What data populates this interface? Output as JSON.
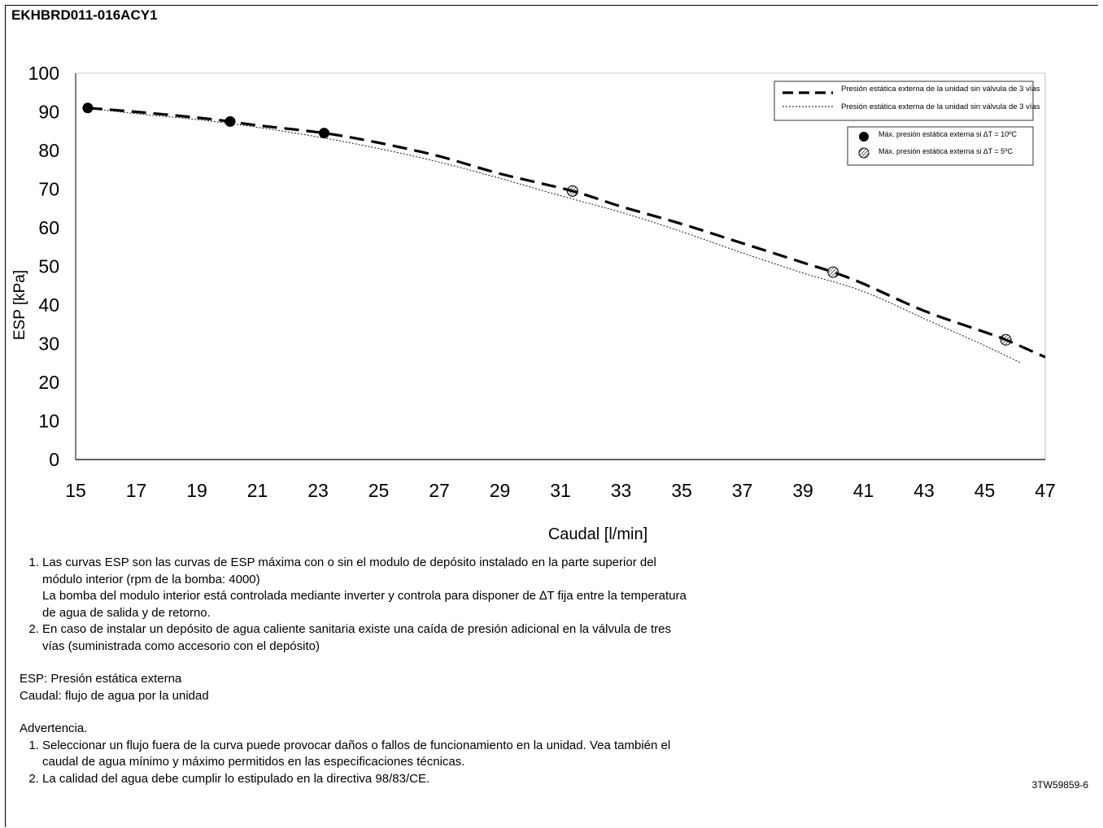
{
  "document": {
    "title": "EKHBRD011-016ACY1",
    "code": "3TW59859-6"
  },
  "chart_data": {
    "type": "line",
    "title": "",
    "xlabel": "Caudal [l/min]",
    "ylabel": "ESP [kPa]",
    "xlim": [
      15,
      47
    ],
    "ylim": [
      0,
      100
    ],
    "xticks": [
      15,
      17,
      19,
      21,
      23,
      25,
      27,
      29,
      31,
      33,
      35,
      37,
      39,
      41,
      43,
      45,
      47
    ],
    "yticks": [
      0,
      10,
      20,
      30,
      40,
      50,
      60,
      70,
      80,
      90,
      100
    ],
    "grid": false,
    "legend_position": "top-right",
    "series": [
      {
        "name": "Presión estática externa de la unidad sin válvula de 3 vías",
        "style": "dashed",
        "x": [
          15.4,
          17,
          19,
          20.1,
          21,
          23.2,
          25,
          27,
          29,
          31.4,
          33,
          35,
          37,
          39,
          40,
          41,
          43,
          45,
          45.7,
          47
        ],
        "y": [
          91,
          90,
          88.5,
          87.5,
          86.5,
          84.5,
          82,
          78.5,
          74,
          69.5,
          65.5,
          61,
          56,
          51,
          48.5,
          45.5,
          38.5,
          33,
          31,
          26.5
        ]
      },
      {
        "name": "Presión estática externa de la unidad sin válvula de 3 vías",
        "style": "dotted",
        "x": [
          15.4,
          17,
          19,
          21,
          23,
          25,
          27,
          29,
          31,
          33,
          35,
          37,
          39,
          41,
          43,
          45,
          46.2
        ],
        "y": [
          91,
          89.5,
          88,
          86,
          83.5,
          80.5,
          77,
          72.8,
          68.3,
          64,
          59,
          53.5,
          48.3,
          43.5,
          36.5,
          29.5,
          25
        ]
      }
    ],
    "markers": [
      {
        "name": "Máx. presión estática externa si ∆T = 10ºC",
        "style": "filled",
        "points": [
          [
            15.4,
            91
          ],
          [
            20.1,
            87.5
          ],
          [
            23.2,
            84.5
          ]
        ]
      },
      {
        "name": "Máx. presión estática externa si ∆T = 5ºC",
        "style": "hatched",
        "points": [
          [
            31.4,
            69.5
          ],
          [
            40,
            48.5
          ],
          [
            45.7,
            31
          ]
        ]
      }
    ]
  },
  "notes": {
    "items1": [
      {
        "line1": "Las curvas ESP son las curvas de ESP máxima con o sin el modulo de depósito instalado en la parte superior del módulo interior (rpm de la bomba: 4000)",
        "line2": "La bomba del modulo interior está controlada mediante inverter y controla para disponer de ∆T fija entre la temperatura de agua de salida y de retorno."
      },
      {
        "line1": "En caso de instalar un depósito de agua caliente sanitaria existe una caída de presión adicional en la válvula de tres vías (suministrada como accesorio con el depósito)"
      }
    ],
    "esp_def": "ESP: Presión estática externa",
    "caudal_def": "Caudal: flujo de agua por la unidad",
    "warning_heading": "Advertencia.",
    "warnings": [
      "Seleccionar un flujo fuera de la curva puede provocar daños o fallos de funcionamiento en la unidad.  Vea también el caudal de agua mínimo y máximo permitidos en las especificaciones técnicas.",
      "La calidad del agua debe cumplir lo estipulado en la directiva 98/83/CE."
    ]
  }
}
